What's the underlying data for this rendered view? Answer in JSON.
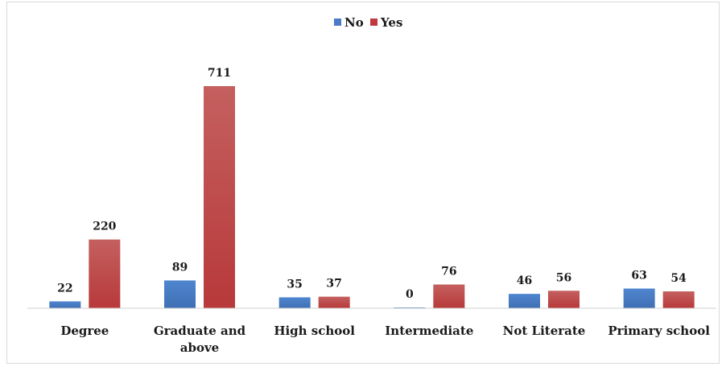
{
  "chart_data": {
    "type": "bar",
    "title": "",
    "xlabel": "",
    "ylabel": "",
    "categories": [
      [
        "Degree"
      ],
      [
        "Graduate and",
        "above"
      ],
      [
        "High school"
      ],
      [
        "Intermediate"
      ],
      [
        "Not Literate"
      ],
      [
        "Primary school"
      ]
    ],
    "series": [
      {
        "name": "No",
        "color": "#4a7bc4",
        "values": [
          22,
          89,
          35,
          0,
          46,
          63
        ]
      },
      {
        "name": "Yes",
        "color": "#c0393c",
        "values": [
          220,
          711,
          37,
          76,
          56,
          54
        ]
      }
    ],
    "ylim": [
      0,
      711
    ],
    "grid": false,
    "legend_position": "top-center",
    "data_labels": true
  }
}
